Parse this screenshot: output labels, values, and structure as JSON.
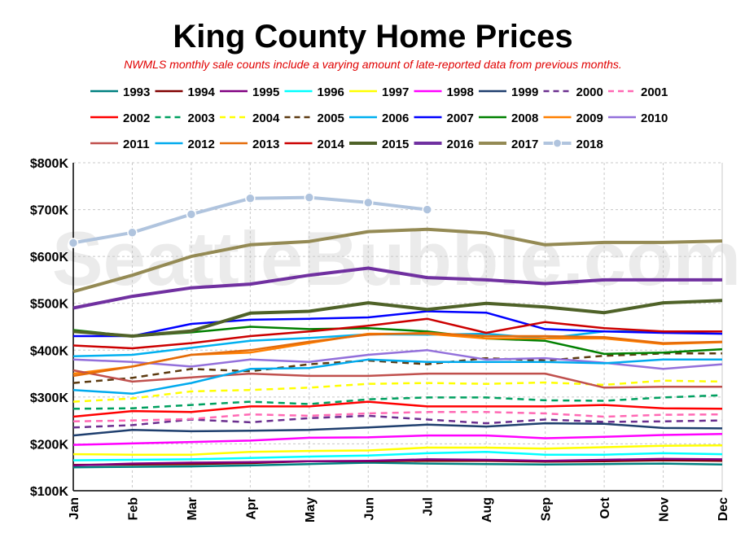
{
  "chart_data": {
    "type": "line",
    "title": "King County Home Prices",
    "subtitle": "NWMLS monthly sale counts include a varying amount of late-reported  data from previous months.",
    "watermark": "SeattleBubble.com",
    "categories": [
      "Jan",
      "Feb",
      "Mar",
      "Apr",
      "May",
      "Jun",
      "Jul",
      "Aug",
      "Sep",
      "Oct",
      "Nov",
      "Dec"
    ],
    "y_ticks": [
      "$100K",
      "$200K",
      "$300K",
      "$400K",
      "$500K",
      "$600K",
      "$700K",
      "$800K"
    ],
    "ylim": [
      100000,
      800000
    ],
    "grid": "horizontal and vertical dashed",
    "legend_position": "top",
    "series": [
      {
        "name": "1993",
        "color": "#008080",
        "style": "solid",
        "values": [
          150000,
          151000,
          152000,
          154000,
          157000,
          160000,
          158000,
          157000,
          156000,
          157000,
          158000,
          156000
        ]
      },
      {
        "name": "1994",
        "color": "#800000",
        "style": "solid",
        "values": [
          155000,
          156000,
          157000,
          159000,
          163000,
          163000,
          164000,
          164000,
          162000,
          163000,
          165000,
          164000
        ]
      },
      {
        "name": "1995",
        "color": "#800080",
        "style": "solid",
        "values": [
          154000,
          158000,
          160000,
          161000,
          163000,
          164000,
          167000,
          166000,
          164000,
          166000,
          168000,
          167000
        ]
      },
      {
        "name": "1996",
        "color": "#00ffff",
        "style": "solid",
        "values": [
          165000,
          166000,
          167000,
          170000,
          173000,
          175000,
          180000,
          183000,
          177000,
          177000,
          180000,
          178000
        ]
      },
      {
        "name": "1997",
        "color": "#ffff00",
        "style": "solid",
        "values": [
          178000,
          177000,
          177000,
          183000,
          185000,
          186000,
          192000,
          192000,
          190000,
          193000,
          196000,
          197000
        ]
      },
      {
        "name": "1998",
        "color": "#ff00ff",
        "style": "solid",
        "values": [
          198000,
          201000,
          204000,
          207000,
          213000,
          214000,
          218000,
          218000,
          212000,
          215000,
          219000,
          221000
        ]
      },
      {
        "name": "1999",
        "color": "#1f3f6e",
        "style": "solid",
        "values": [
          218000,
          230000,
          227000,
          228000,
          230000,
          235000,
          241000,
          237000,
          244000,
          243000,
          234000,
          233000
        ]
      },
      {
        "name": "2000",
        "color": "#6b2f8f",
        "style": "dash",
        "values": [
          235000,
          240000,
          252000,
          246000,
          255000,
          260000,
          252000,
          244000,
          252000,
          247000,
          248000,
          250000
        ]
      },
      {
        "name": "2001",
        "color": "#ff69b4",
        "style": "dash",
        "values": [
          248000,
          250000,
          253000,
          263000,
          260000,
          265000,
          268000,
          268000,
          265000,
          258000,
          262000,
          263000
        ]
      },
      {
        "name": "2002",
        "color": "#ff0000",
        "style": "solid",
        "values": [
          258000,
          270000,
          268000,
          280000,
          280000,
          290000,
          280000,
          280000,
          280000,
          283000,
          276000,
          275000
        ]
      },
      {
        "name": "2003",
        "color": "#00a060",
        "style": "dash",
        "values": [
          275000,
          276000,
          283000,
          290000,
          285000,
          295000,
          299000,
          299000,
          293000,
          292000,
          299000,
          304000
        ]
      },
      {
        "name": "2004",
        "color": "#ffff00",
        "style": "dash",
        "values": [
          290000,
          297000,
          312000,
          315000,
          320000,
          328000,
          330000,
          328000,
          331000,
          326000,
          335000,
          333000
        ]
      },
      {
        "name": "2005",
        "color": "#5c3a10",
        "style": "dash",
        "values": [
          330000,
          341000,
          360000,
          355000,
          370000,
          378000,
          370000,
          383000,
          378000,
          388000,
          393000,
          393000
        ]
      },
      {
        "name": "2006",
        "color": "#00b0f0",
        "style": "solid",
        "values": [
          387000,
          390000,
          405000,
          420000,
          426000,
          434000,
          433000,
          435000,
          425000,
          440000,
          440000,
          440000
        ]
      },
      {
        "name": "2007",
        "color": "#0000ff",
        "style": "solid",
        "values": [
          430000,
          430000,
          456000,
          465000,
          467000,
          470000,
          483000,
          480000,
          445000,
          440000,
          437000,
          435000
        ]
      },
      {
        "name": "2008",
        "color": "#008000",
        "style": "solid",
        "values": [
          443000,
          430000,
          438000,
          450000,
          445000,
          447000,
          440000,
          425000,
          420000,
          392000,
          395000,
          402000
        ]
      },
      {
        "name": "2009",
        "color": "#ff7f00",
        "style": "solid",
        "values": [
          350000,
          365000,
          390000,
          395000,
          415000,
          435000,
          435000,
          425000,
          425000,
          425000,
          413000,
          417000
        ]
      },
      {
        "name": "2010",
        "color": "#9370db",
        "style": "solid",
        "values": [
          380000,
          375000,
          365000,
          380000,
          375000,
          390000,
          400000,
          380000,
          383000,
          373000,
          360000,
          370000
        ]
      },
      {
        "name": "2011",
        "color": "#c0504d",
        "style": "solid",
        "values": [
          357000,
          333000,
          342000,
          350000,
          345000,
          345000,
          350000,
          350000,
          350000,
          320000,
          322000,
          322000
        ]
      },
      {
        "name": "2012",
        "color": "#00aaee",
        "style": "solid",
        "values": [
          315000,
          307000,
          330000,
          360000,
          362000,
          380000,
          375000,
          375000,
          375000,
          372000,
          380000,
          380000
        ]
      },
      {
        "name": "2013",
        "color": "#e46c0a",
        "style": "solid",
        "values": [
          345000,
          365000,
          390000,
          400000,
          418000,
          433000,
          437000,
          430000,
          430000,
          428000,
          415000,
          418000
        ]
      },
      {
        "name": "2014",
        "color": "#cc0000",
        "style": "solid",
        "values": [
          410000,
          404000,
          415000,
          430000,
          440000,
          452000,
          467000,
          437000,
          460000,
          447000,
          440000,
          440000
        ]
      },
      {
        "name": "2015",
        "color": "#4f6228",
        "style": "solid",
        "values": [
          440000,
          430000,
          441000,
          479000,
          483000,
          501000,
          487000,
          500000,
          492000,
          480000,
          501000,
          506000
        ]
      },
      {
        "name": "2016",
        "color": "#7030a0",
        "style": "solid",
        "values": [
          490000,
          515000,
          533000,
          541000,
          560000,
          575000,
          555000,
          550000,
          542000,
          550000,
          550000,
          550000
        ]
      },
      {
        "name": "2017",
        "color": "#948a54",
        "style": "solid",
        "values": [
          525000,
          560000,
          600000,
          625000,
          632000,
          653000,
          658000,
          650000,
          625000,
          630000,
          630000,
          633000
        ]
      },
      {
        "name": "2018",
        "color": "#b0c4de",
        "style": "solid-markers",
        "values": [
          629000,
          651000,
          690000,
          724000,
          726000,
          715000,
          700000,
          null,
          null,
          null,
          null,
          null
        ]
      }
    ]
  }
}
